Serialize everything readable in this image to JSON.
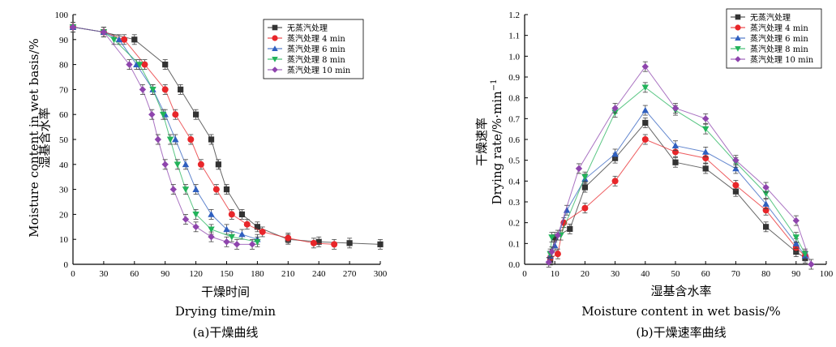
{
  "chart_data": [
    {
      "type": "line",
      "caption": "(a)干燥曲线",
      "xlabel_cn": "干燥时间",
      "xlabel_en": "Drying time/min",
      "ylabel_cn": "湿基含水率",
      "ylabel_en": "Moisture content in wet basis/%",
      "xlim": [
        0,
        300
      ],
      "ylim": [
        0,
        100
      ],
      "xticks": [
        "0",
        "30",
        "60",
        "90",
        "120",
        "150",
        "180",
        "210",
        "240",
        "270",
        "300"
      ],
      "yticks": [
        "0",
        "10",
        "20",
        "30",
        "40",
        "50",
        "60",
        "70",
        "80",
        "90",
        "100"
      ],
      "legend_position": "top-right",
      "series": [
        {
          "name": "无蒸汽处理",
          "color": "#333333",
          "marker": "square",
          "x": [
            0,
            30,
            60,
            90,
            105,
            120,
            135,
            142,
            150,
            165,
            180,
            210,
            240,
            270,
            300
          ],
          "y": [
            95,
            93,
            90,
            80,
            70,
            60,
            50,
            40,
            30,
            20,
            15,
            10,
            9,
            8.5,
            8
          ]
        },
        {
          "name": "蒸汽处理 4 min",
          "color": "#e8262a",
          "marker": "circle",
          "x": [
            0,
            30,
            50,
            70,
            90,
            100,
            115,
            125,
            140,
            155,
            170,
            185,
            210,
            235,
            255
          ],
          "y": [
            95,
            93,
            90,
            80,
            70,
            60,
            50,
            40,
            30,
            20,
            16,
            13,
            10.5,
            8.5,
            8
          ]
        },
        {
          "name": "蒸汽处理 6 min",
          "color": "#2f5fbf",
          "marker": "triangle",
          "x": [
            0,
            30,
            45,
            62,
            78,
            90,
            100,
            110,
            120,
            135,
            150,
            165,
            180
          ],
          "y": [
            95,
            93,
            90,
            80,
            70,
            60,
            50,
            40,
            30,
            20,
            14,
            12,
            10
          ]
        },
        {
          "name": "蒸汽处理 8 min",
          "color": "#22b35a",
          "marker": "triangle-down",
          "x": [
            0,
            30,
            40,
            65,
            78,
            88,
            95,
            102,
            110,
            120,
            135,
            155,
            180
          ],
          "y": [
            95,
            93,
            90,
            80,
            70,
            60,
            50,
            40,
            30,
            20,
            14,
            11,
            9
          ]
        },
        {
          "name": "蒸汽处理 10 min",
          "color": "#8e44ad",
          "marker": "diamond",
          "x": [
            0,
            30,
            55,
            68,
            77,
            83,
            90,
            98,
            110,
            120,
            135,
            150,
            160,
            175
          ],
          "y": [
            95,
            93,
            80,
            70,
            60,
            50,
            40,
            30,
            18,
            15,
            11,
            9,
            8,
            8
          ]
        }
      ]
    },
    {
      "type": "line",
      "caption": "(b)干燥速率曲线",
      "xlabel_cn": "湿基含水率",
      "xlabel_en": "Moisture content in wet basis/%",
      "ylabel_cn": "干燥速率",
      "ylabel_en": "Drying rate/%·min",
      "ylabel_sup": "−1",
      "xlim": [
        0,
        100
      ],
      "ylim": [
        0,
        1.2
      ],
      "xticks": [
        "0",
        "10",
        "20",
        "30",
        "40",
        "50",
        "60",
        "70",
        "80",
        "90",
        "100"
      ],
      "yticks": [
        "0.0",
        "0.1",
        "0.2",
        "0.3",
        "0.4",
        "0.5",
        "0.6",
        "0.7",
        "0.8",
        "0.9",
        "1.0",
        "1.1",
        "1.2"
      ],
      "legend_position": "top-right",
      "series": [
        {
          "name": "无蒸汽处理",
          "color": "#333333",
          "marker": "square",
          "x": [
            8.5,
            10,
            15,
            20,
            30,
            40,
            50,
            60,
            70,
            80,
            90,
            93
          ],
          "y": [
            0.02,
            0.13,
            0.17,
            0.37,
            0.51,
            0.68,
            0.49,
            0.46,
            0.35,
            0.18,
            0.06,
            0.03
          ]
        },
        {
          "name": "蒸汽处理 4 min",
          "color": "#e8262a",
          "marker": "circle",
          "x": [
            8.5,
            11,
            13,
            20,
            30,
            40,
            50,
            60,
            70,
            80,
            90,
            93
          ],
          "y": [
            0.03,
            0.05,
            0.2,
            0.27,
            0.4,
            0.6,
            0.54,
            0.51,
            0.38,
            0.26,
            0.08,
            0.04
          ]
        },
        {
          "name": "蒸汽处理 6 min",
          "color": "#2f5fbf",
          "marker": "triangle",
          "x": [
            8.5,
            10,
            14,
            20,
            30,
            40,
            50,
            60,
            70,
            80,
            90,
            93
          ],
          "y": [
            0.04,
            0.09,
            0.26,
            0.41,
            0.53,
            0.74,
            0.57,
            0.54,
            0.46,
            0.29,
            0.1,
            0.04
          ]
        },
        {
          "name": "蒸汽处理 8 min",
          "color": "#22b35a",
          "marker": "triangle-down",
          "x": [
            8.5,
            9,
            12,
            20,
            30,
            40,
            50,
            60,
            70,
            80,
            90,
            93
          ],
          "y": [
            0.05,
            0.13,
            0.14,
            0.42,
            0.73,
            0.85,
            0.74,
            0.65,
            0.49,
            0.34,
            0.13,
            0.05
          ]
        },
        {
          "name": "蒸汽处理 10 min",
          "color": "#8e44ad",
          "marker": "diamond",
          "x": [
            8,
            9,
            11,
            18,
            30,
            40,
            50,
            60,
            70,
            80,
            90,
            95
          ],
          "y": [
            0.01,
            0.06,
            0.14,
            0.46,
            0.75,
            0.95,
            0.75,
            0.7,
            0.5,
            0.37,
            0.21,
            0.0
          ]
        }
      ]
    }
  ]
}
